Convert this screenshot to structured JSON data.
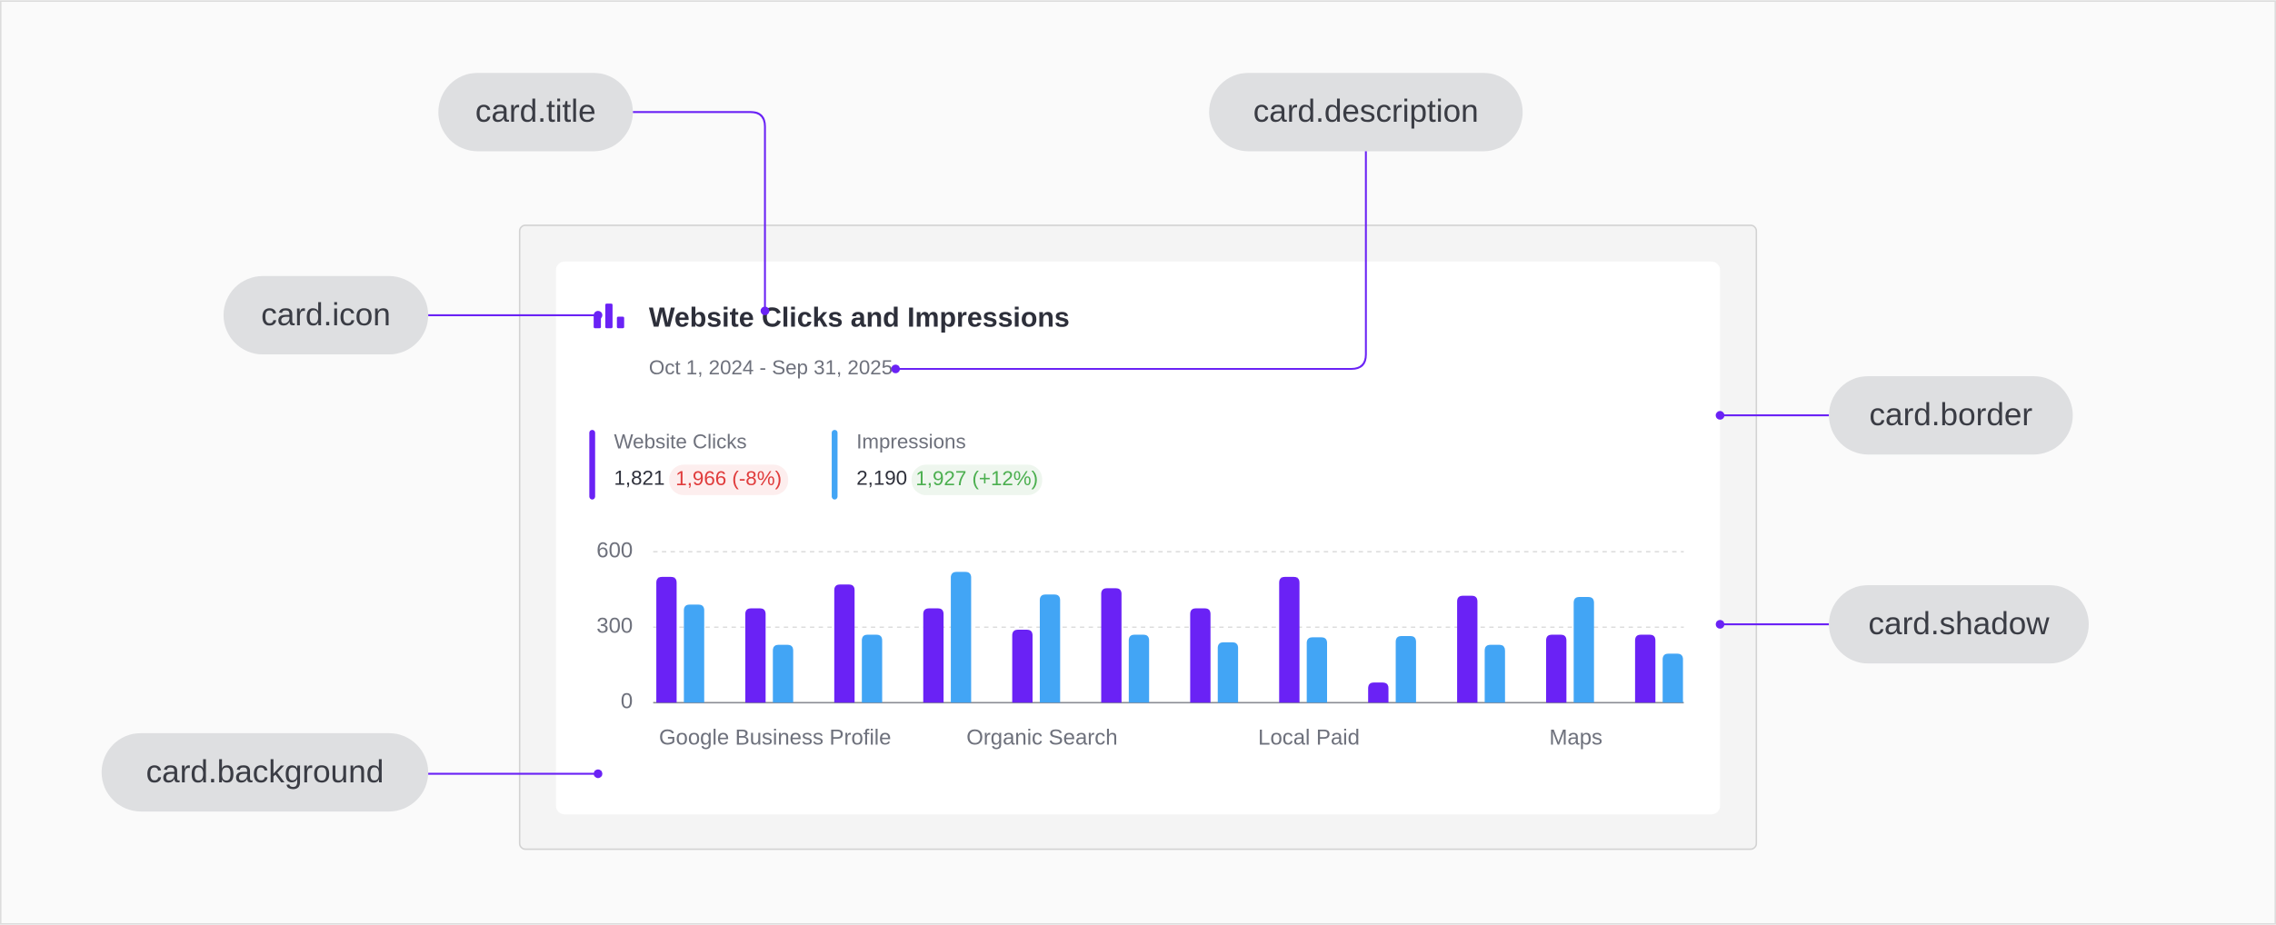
{
  "callouts": [
    {
      "label": "card.title"
    },
    {
      "label": "card.description"
    },
    {
      "label": "card.icon"
    },
    {
      "label": "card.border"
    },
    {
      "label": "card.shadow"
    },
    {
      "label": "card.background"
    }
  ],
  "card": {
    "title": "Website Clicks and Impressions",
    "description": "Oct 1, 2024 - Sep 31, 2025"
  },
  "chart_data": {
    "type": "bar",
    "categories": [
      null,
      "Google Business Profile",
      null,
      null,
      "Organic Search",
      null,
      null,
      "Local Paid",
      null,
      null,
      "Maps",
      null
    ],
    "series": [
      {
        "name": "Website Clicks",
        "color": "#6a22f5",
        "total": "1,821",
        "comparison": "1,966 (-8%)",
        "values": [
          500,
          375,
          470,
          375,
          290,
          455,
          375,
          500,
          80,
          425,
          270,
          270
        ]
      },
      {
        "name": "Impressions",
        "color": "#42a5f5",
        "total": "2,190",
        "comparison": "1,927 (+12%)",
        "values": [
          390,
          230,
          270,
          520,
          430,
          270,
          240,
          260,
          265,
          230,
          420,
          195
        ]
      }
    ],
    "ylim": [
      0,
      600
    ],
    "yticks": [
      0,
      300,
      600
    ],
    "grid": true
  }
}
